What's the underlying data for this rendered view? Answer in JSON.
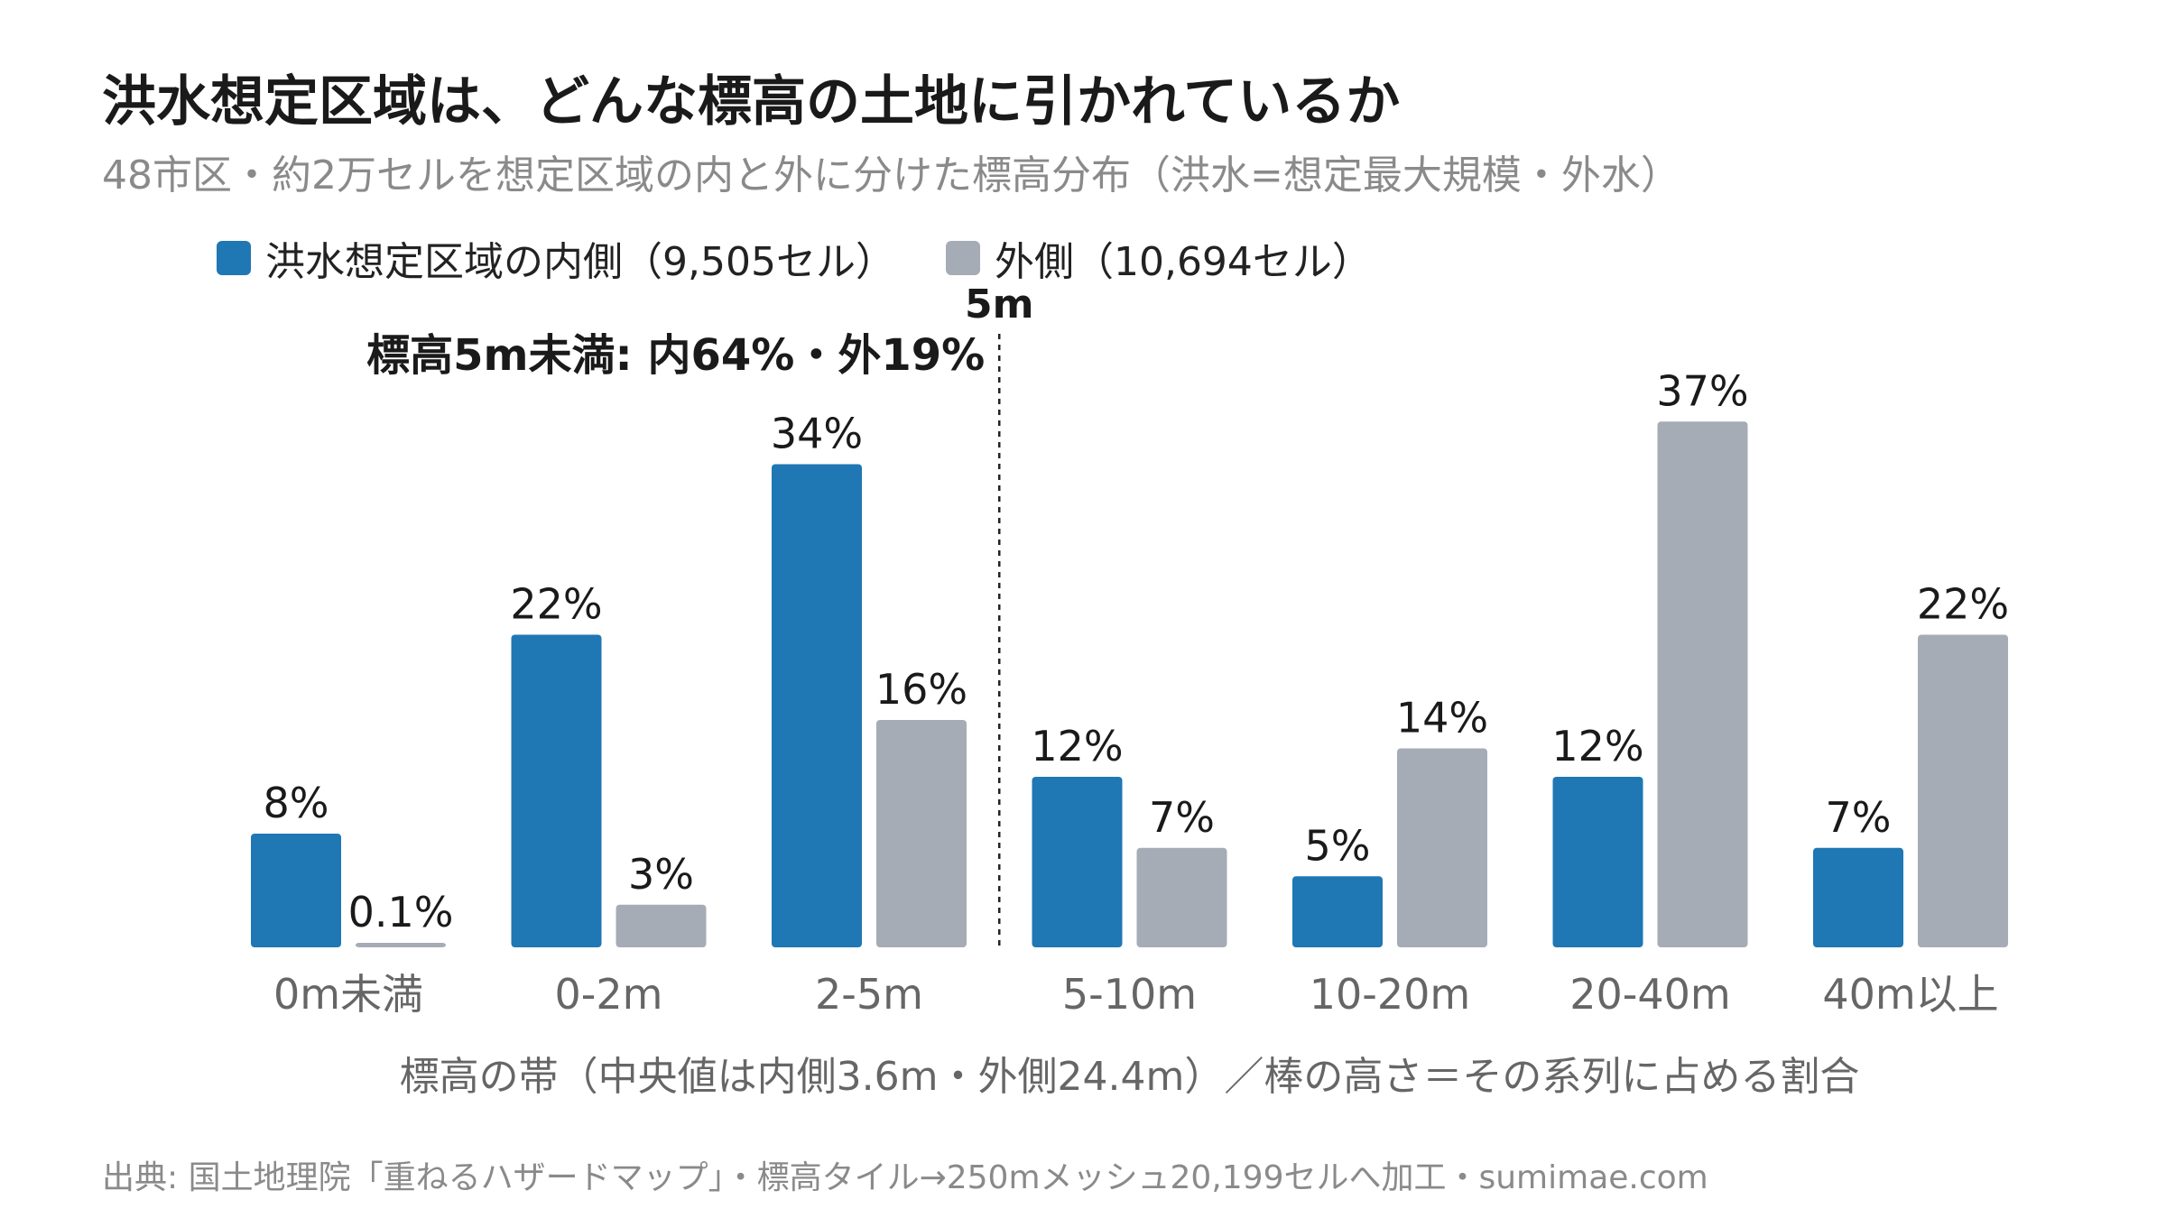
{
  "title": "洪水想定区域は、どんな標高の土地に引かれているか",
  "subtitle": "48市区・約2万セルを想定区域の内と外に分けた標高分布（洪水=想定最大規模・外水）",
  "source": "出典: 国土地理院「重ねるハザードマップ」・標高タイル→250mメッシュ20,199セルへ加工・sumimae.com",
  "colors": {
    "inside": "#1f77b4",
    "outside": "#a6acb6"
  },
  "chart_data": {
    "type": "bar",
    "categories": [
      "0m未満",
      "0-2m",
      "2-5m",
      "5-10m",
      "10-20m",
      "20-40m",
      "40m以上"
    ],
    "series": [
      {
        "name": "洪水想定区域の内側（9,505セル）",
        "values": [
          8,
          22,
          34,
          12,
          5,
          12,
          7
        ],
        "labels": [
          "8%",
          "22%",
          "34%",
          "12%",
          "5%",
          "12%",
          "7%"
        ]
      },
      {
        "name": "外側（10,694セル）",
        "values": [
          0.1,
          3,
          16,
          7,
          14,
          37,
          22
        ],
        "labels": [
          "0.1%",
          "3%",
          "16%",
          "7%",
          "14%",
          "37%",
          "22%"
        ]
      }
    ],
    "xlabel": "標高の帯（中央値は内側3.6m・外側24.4m）／棒の高さ＝その系列に占める割合",
    "ylim": [
      0,
      40
    ],
    "annotation": {
      "line_label": "5m",
      "text": "標高5m未満: 内64%・外19%",
      "after_category_index": 2
    }
  }
}
